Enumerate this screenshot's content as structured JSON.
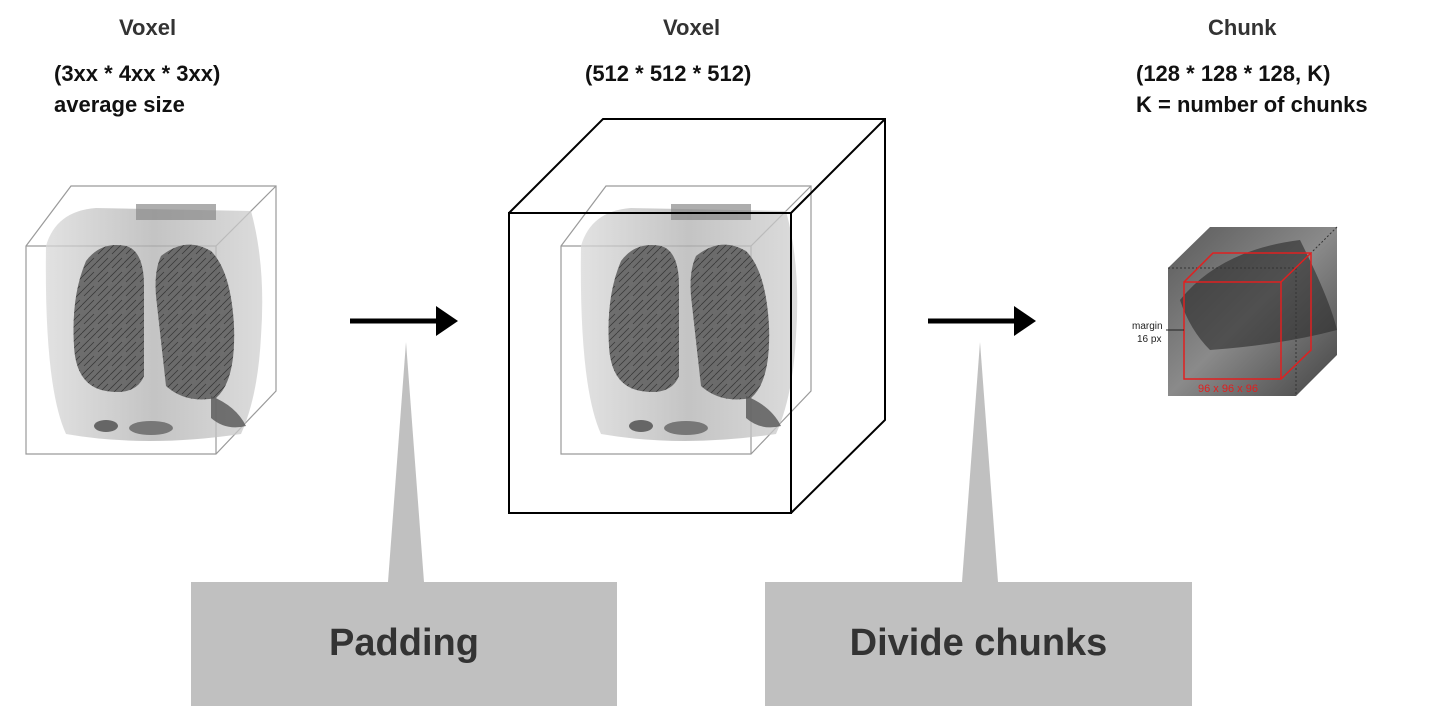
{
  "stage1": {
    "title": "Voxel",
    "line1": "(3xx * 4xx * 3xx)",
    "line2": "average size"
  },
  "stage2": {
    "title": "Voxel",
    "line1": "(512 * 512 * 512)"
  },
  "stage3": {
    "title": "Chunk",
    "line1": "(128 * 128 * 128, K)",
    "line2": "K = number of chunks",
    "margin_label_1": "margin",
    "margin_label_2": "16 px",
    "inner_label": "96 x 96 x 96"
  },
  "steps": [
    {
      "label": "Padding"
    },
    {
      "label": "Divide chunks"
    }
  ],
  "colors": {
    "callout": "#c0c0c0",
    "arrow": "#000000",
    "chunk_box": "#e02020",
    "text_dark": "#333333"
  }
}
